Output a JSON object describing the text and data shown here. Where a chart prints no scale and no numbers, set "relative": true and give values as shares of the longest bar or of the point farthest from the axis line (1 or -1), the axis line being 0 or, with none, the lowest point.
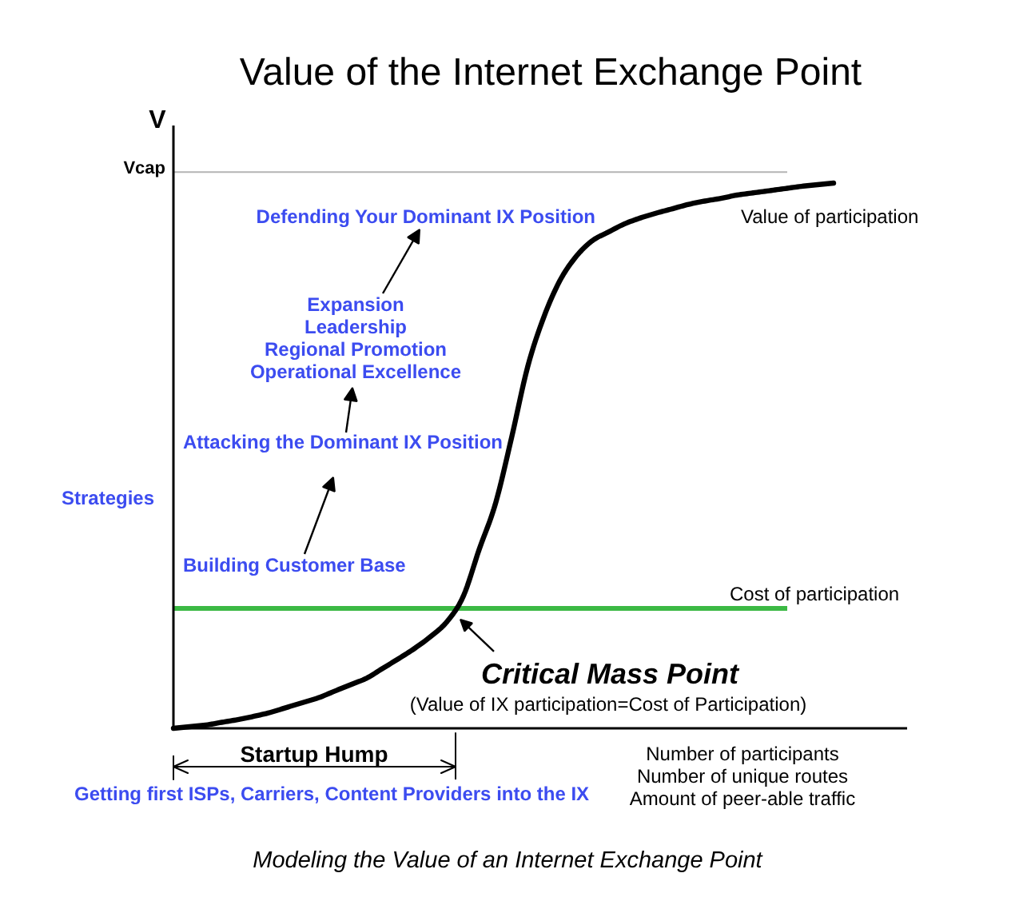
{
  "chart_data": {
    "type": "line",
    "title": "Value of the Internet Exchange Point",
    "ylabel": "V",
    "xlabel": "Number of participants\nNumber of unique routes\nAmount of peer-able traffic",
    "relative": true,
    "categories": [
      null,
      null,
      null,
      null,
      null,
      null,
      null,
      null,
      null,
      null,
      null,
      null,
      null,
      null,
      null,
      null,
      null,
      null,
      null,
      null,
      null,
      null,
      null,
      null,
      null,
      null,
      null,
      null,
      null,
      null,
      null,
      null,
      null,
      null,
      null,
      null,
      null,
      null,
      null,
      null,
      null,
      null
    ],
    "series": [
      {
        "name": "Value of participation",
        "color": "#000000",
        "values": [
          0,
          0.003,
          0.006,
          0.011,
          0.016,
          0.022,
          0.029,
          0.038,
          0.047,
          0.056,
          0.068,
          0.08,
          0.092,
          0.11,
          0.128,
          0.147,
          0.169,
          0.196,
          0.242,
          0.329,
          0.412,
          0.533,
          0.663,
          0.754,
          0.821,
          0.865,
          0.894,
          0.91,
          0.925,
          0.936,
          0.945,
          0.953,
          0.961,
          0.967,
          0.972,
          0.978,
          0.982,
          0.986,
          0.99,
          0.994,
          0.997,
          1.0
        ]
      }
    ],
    "ref_lines": [
      {
        "axis": "y",
        "value": 1.02,
        "label": "Vcap",
        "color": "#b4b4b4"
      },
      {
        "axis": "y",
        "value": 0.22,
        "label": "Cost of participation",
        "color": "#3cb944"
      }
    ],
    "annotations": [
      "Defending Your Dominant IX Position",
      "Expansion\nLeadership\nRegional Promotion\nOperational Excellence",
      "Attacking the Dominant IX Position",
      "Building Customer Base",
      "Strategies",
      {
        "text": "Critical Mass Point",
        "y": 0.22
      },
      "(Value of IX participation=Cost of Participation)",
      "Startup Hump",
      "Getting first ISPs, Carriers, Content Providers into the IX",
      "Modeling the Value of an Internet Exchange Point"
    ]
  }
}
